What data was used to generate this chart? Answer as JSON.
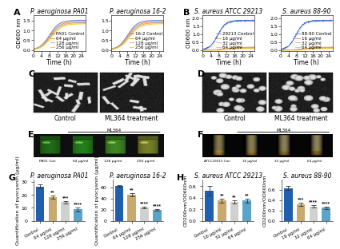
{
  "panel_A": {
    "title1": "P. aeruginosa PA01",
    "title2": "P. aeruginosa 16-2",
    "xlabel": "Time (h)",
    "ylabel": "OD600 nm",
    "legend1": [
      "PA01 Control",
      "64 μg/ml",
      "128 μg/ml",
      "256 μg/ml"
    ],
    "legend2": [
      "16-2 Control",
      "64 μg/ml",
      "128 μg/ml",
      "256 μg/ml"
    ],
    "colors": [
      "#4472C4",
      "#ED7D31",
      "#A9A9A9",
      "#FFC000"
    ],
    "xmax": 26,
    "ymax": 1.8,
    "yticks": [
      0.0,
      0.5,
      1.0,
      1.5
    ],
    "xticks": [
      0,
      4,
      8,
      12,
      16,
      20,
      24
    ]
  },
  "panel_B": {
    "title1": "S. aureus ATCC 29213",
    "title2": "S. aureus 88-90",
    "xlabel": "Time (h)",
    "ylabel": "OD600 nm",
    "legend1": [
      "29213 Control",
      "16 μg/ml",
      "32 μg/ml",
      "64 μg/ml"
    ],
    "legend2": [
      "88-90 Control",
      "16 μg/ml",
      "32 μg/ml",
      "64 μg/ml"
    ],
    "colors": [
      "#4472C4",
      "#ED7D31",
      "#A9A9A9",
      "#FFC000"
    ],
    "xmax": 26,
    "ymax": 2.2,
    "yticks": [
      0.0,
      0.5,
      1.0,
      1.5,
      2.0
    ],
    "xticks": [
      0,
      4,
      8,
      12,
      16,
      20,
      24
    ]
  },
  "panel_C": {
    "label_left": "Control",
    "label_right": "ML364 treatment"
  },
  "panel_D": {
    "label_left": "Control",
    "label_right": "ML364 treatment"
  },
  "panel_E": {
    "labels": [
      "PA01 Con",
      "64 μg/ml",
      "128 μg/ml",
      "256 μg/ml"
    ],
    "ml364_label": "ML364",
    "flask_colors": [
      "#2a6b1a",
      "#2e7a1c",
      "#5a7a30",
      "#7a7a40"
    ],
    "bg_color": "#000000"
  },
  "panel_F": {
    "labels": [
      "ATCC29213 Con",
      "16 μg/ml",
      "32 μg/ml",
      "64 μg/ml"
    ],
    "ml364_label": "ML364",
    "tube_colors_top": [
      "#d4c090",
      "#d4c090",
      "#d4c090",
      "#d4c090"
    ],
    "tube_colors_bottom": [
      "#c8a030",
      "#c0a030",
      "#b89030",
      "#b08030"
    ],
    "bg_color": "#000000"
  },
  "panel_G": {
    "title1": "P. aeruginosa PA01",
    "title2": "P. aeruginosa 16-2",
    "ylabel1": "Quantification of pyocyanin (μg/ml)",
    "ylabel2": "Quantification of pyocyanin (μg/ml)",
    "categories": [
      "Control",
      "64 μg/ml",
      "128 μg/ml",
      "256 μg/ml"
    ],
    "values1": [
      26.5,
      18.5,
      14.5,
      9.0
    ],
    "errors1": [
      1.5,
      1.2,
      1.0,
      1.5
    ],
    "values2": [
      63,
      47,
      24,
      20
    ],
    "errors2": [
      2.0,
      2.5,
      1.8,
      1.8
    ],
    "bar_colors": [
      "#1F5FAD",
      "#C8A96E",
      "#D0D0D0",
      "#5BA3C9"
    ],
    "sig1": [
      "",
      "**",
      "***",
      "****"
    ],
    "sig2": [
      "",
      "**",
      "****",
      "****"
    ],
    "ylim1": [
      0,
      32
    ],
    "ylim2": [
      0,
      75
    ],
    "yticks1": [
      0,
      10,
      20,
      30
    ],
    "yticks2": [
      0,
      20,
      40,
      60
    ]
  },
  "panel_H": {
    "title1": "S. aureus ATCC 29213",
    "title2": "S. aureus 88-90",
    "ylabel1": "OD200nm/OD600nm",
    "ylabel2": "OD200nm/OD600nm",
    "categories": [
      "Control",
      "16 μg/ml",
      "32 μg/ml",
      "64 μg/ml"
    ],
    "values1": [
      0.52,
      0.35,
      0.33,
      0.35
    ],
    "errors1": [
      0.08,
      0.04,
      0.03,
      0.04
    ],
    "values2": [
      0.63,
      0.32,
      0.28,
      0.25
    ],
    "errors2": [
      0.04,
      0.03,
      0.03,
      0.03
    ],
    "bar_colors": [
      "#1F5FAD",
      "#C8A96E",
      "#D0D0D0",
      "#5BA3C9"
    ],
    "sig1": [
      "",
      "**",
      "**",
      "**"
    ],
    "sig2": [
      "",
      "***",
      "****",
      "****"
    ],
    "ylim1": [
      0,
      0.72
    ],
    "ylim2": [
      0,
      0.8
    ],
    "yticks1": [
      0.0,
      0.2,
      0.4,
      0.6
    ],
    "yticks2": [
      0.0,
      0.2,
      0.4,
      0.6
    ]
  },
  "background": "#ffffff",
  "label_fontsize": 6,
  "title_fontsize": 5.5,
  "tick_fontsize": 4.5,
  "legend_fontsize": 4.0,
  "panel_label_fontsize": 8
}
